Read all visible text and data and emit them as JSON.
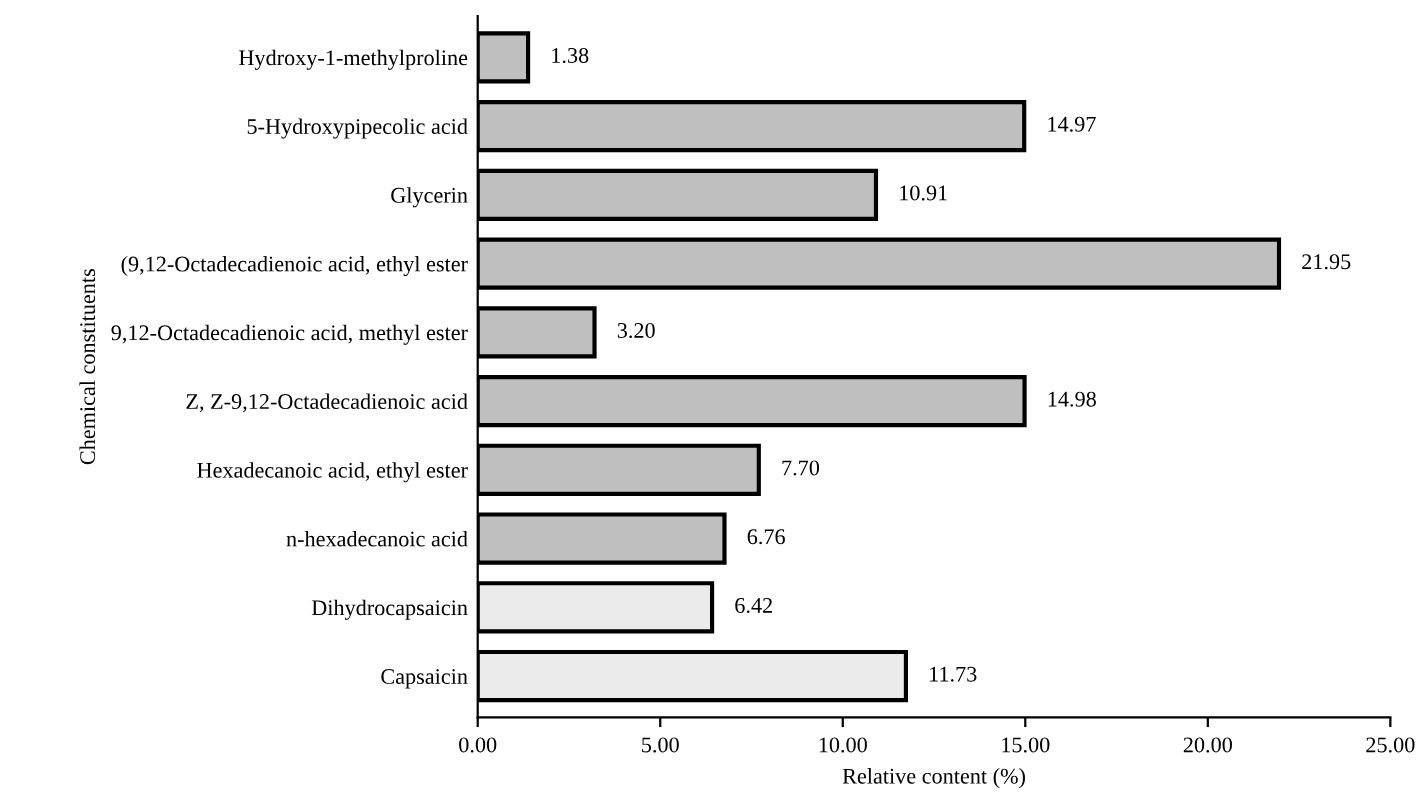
{
  "chart_data": {
    "type": "bar",
    "orientation": "horizontal",
    "xlabel": "Relative content (%)",
    "ylabel": "Chemical constituents",
    "categories": [
      "Hydroxy-1-methylproline",
      "5-Hydroxypipecolic acid",
      "Glycerin",
      "(9,12-Octadecadienoic acid, ethyl ester",
      "9,12-Octadecadienoic acid, methyl ester",
      "Z, Z-9,12-Octadecadienoic acid",
      "Hexadecanoic acid, ethyl ester",
      "n-hexadecanoic acid",
      "Dihydrocapsaicin",
      "Capsaicin"
    ],
    "values": [
      1.38,
      14.97,
      10.91,
      21.95,
      3.2,
      14.98,
      7.7,
      6.76,
      6.42,
      11.73
    ],
    "value_labels": [
      "1.38",
      "14.97",
      "10.91",
      "21.95",
      "3.20",
      "14.98",
      "7.70",
      "6.76",
      "6.42",
      "11.73"
    ],
    "colors": [
      "#bfbfbf",
      "#bfbfbf",
      "#bfbfbf",
      "#bfbfbf",
      "#bfbfbf",
      "#bfbfbf",
      "#bfbfbf",
      "#bfbfbf",
      "#ebebeb",
      "#ebebeb"
    ],
    "xlim": [
      0,
      25
    ],
    "xticks": [
      {
        "value": 0,
        "label": "0.00"
      },
      {
        "value": 5,
        "label": "5.00"
      },
      {
        "value": 10,
        "label": "10.00"
      },
      {
        "value": 15,
        "label": "15.00"
      },
      {
        "value": 20,
        "label": "20.00"
      },
      {
        "value": 25,
        "label": "25.00"
      }
    ],
    "grid": false,
    "legend": false
  }
}
